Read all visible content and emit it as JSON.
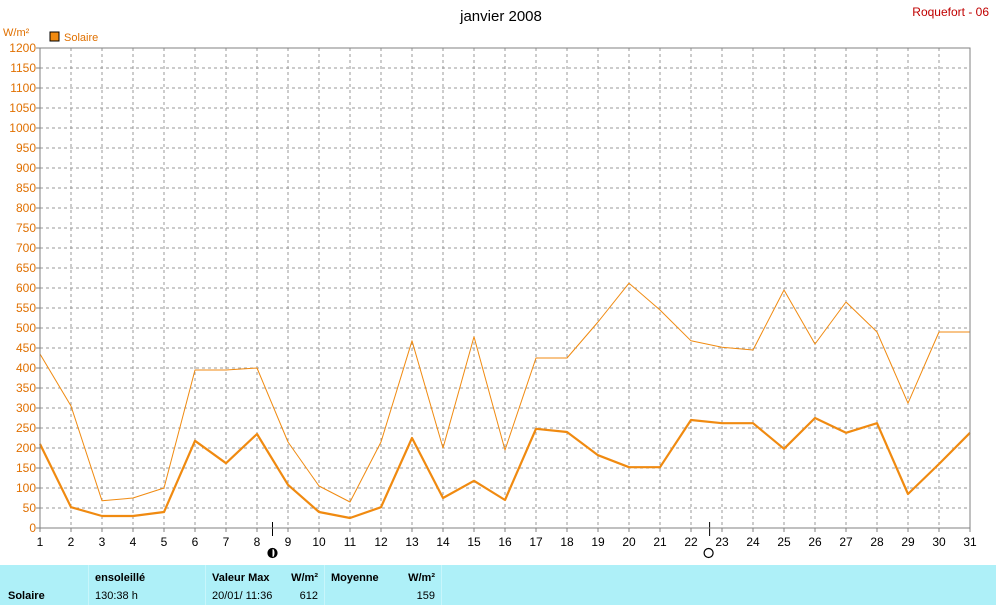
{
  "header": {
    "location": "Roquefort - 06"
  },
  "chart_data": {
    "type": "line",
    "title": "janvier 2008",
    "ylabel": "W/m²",
    "ylim": [
      0,
      1200
    ],
    "ytick_step": 50,
    "x": [
      1,
      2,
      3,
      4,
      5,
      6,
      7,
      8,
      9,
      10,
      11,
      12,
      13,
      14,
      15,
      16,
      17,
      18,
      19,
      20,
      21,
      22,
      23,
      24,
      25,
      26,
      27,
      28,
      29,
      30,
      31
    ],
    "grid": true,
    "legend_position": "top-left",
    "legend_label": "Solaire",
    "series": [
      {
        "role": "max",
        "color": "#f08a10",
        "values": [
          435,
          305,
          68,
          75,
          100,
          395,
          395,
          400,
          215,
          105,
          65,
          215,
          468,
          200,
          478,
          195,
          425,
          425,
          515,
          612,
          545,
          468,
          452,
          445,
          595,
          460,
          565,
          490,
          312,
          490,
          490
        ]
      },
      {
        "name": "Solaire",
        "color": "#f08a10",
        "values": [
          210,
          52,
          30,
          30,
          40,
          218,
          162,
          235,
          108,
          40,
          25,
          52,
          225,
          75,
          118,
          70,
          248,
          240,
          182,
          152,
          152,
          270,
          262,
          262,
          198,
          275,
          238,
          262,
          85,
          160,
          238
        ]
      }
    ],
    "moon_phases": [
      {
        "day": 8.5,
        "phase": "last-quarter"
      },
      {
        "day": 22.6,
        "phase": "full-moon"
      }
    ]
  },
  "footer": {
    "row_label": "Solaire",
    "sunshine_header": "ensoleillé",
    "sunshine_value": "130:38 h",
    "max_header": "Valeur Max",
    "max_unit": "W/m²",
    "max_date": "20/01/  11:36",
    "max_value": "612",
    "mean_header": "Moyenne",
    "mean_unit": "W/m²",
    "mean_value": "159"
  }
}
